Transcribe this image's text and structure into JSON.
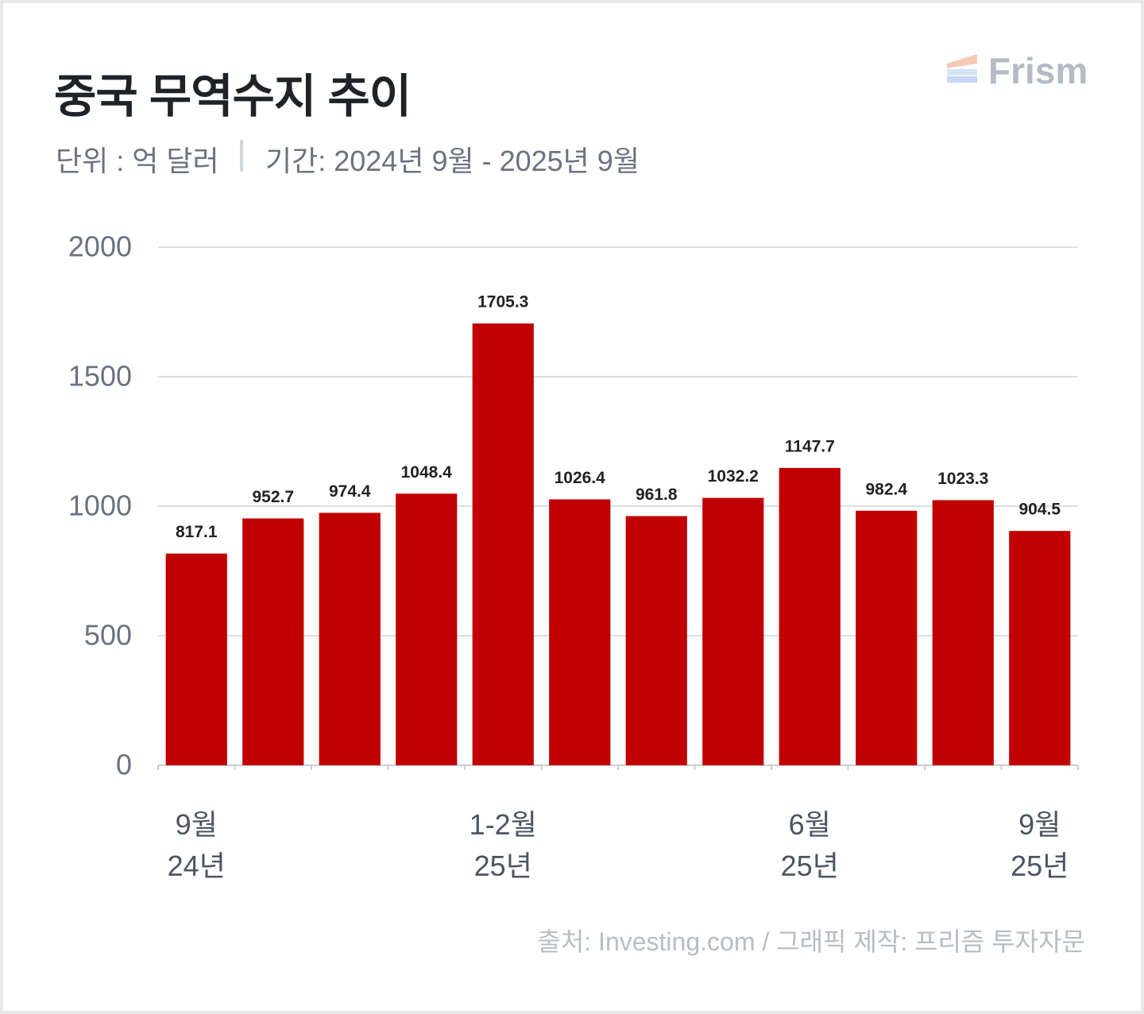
{
  "logo": "Frism",
  "chart_data": {
    "type": "bar",
    "title": "중국 무역수지 추이",
    "subtitle_unit": "단위 : 억 달러",
    "subtitle_period": "기간: 2024년 9월 - 2025년 9월",
    "source": "출처: Investing.com / 그래픽 제작: 프리즘 투자자문",
    "categories": [
      "9월\n24년",
      null,
      null,
      null,
      "1-2월\n25년",
      null,
      null,
      null,
      "6월\n25년",
      null,
      null,
      "9월\n25년"
    ],
    "values": [
      817.1,
      952.7,
      974.4,
      1048.4,
      1705.3,
      1026.4,
      961.8,
      1032.2,
      1147.7,
      982.4,
      1023.3,
      904.5
    ],
    "color": "#c00000",
    "ylim": [
      0,
      2000
    ],
    "yticks": [
      0,
      500,
      1000,
      1500,
      2000
    ],
    "grid": true
  }
}
